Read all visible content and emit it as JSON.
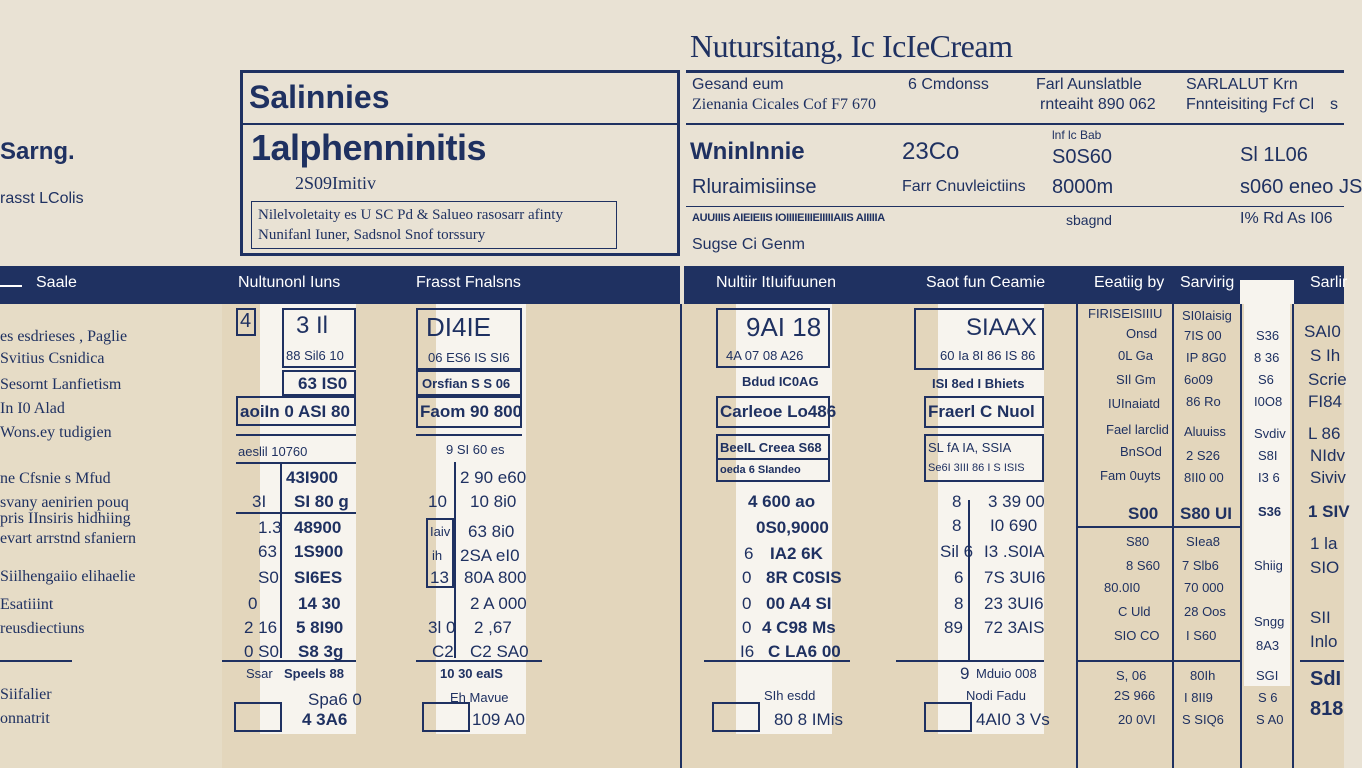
{
  "title": "Nutursitang, Ic IcIeCream",
  "left_header": {
    "title": "Sarng.",
    "subtitle": "rasst LColis"
  },
  "box_a": {
    "heading": "Salinnies",
    "subheading": "1alphenninitis",
    "subtext": "2S09Imitiv",
    "note_line1": "Nilelvoletaity es U SC Pd & Salueo rasosarr afinty",
    "note_line2": "Nunifanl Iuner, Sadsnol Snof torssury"
  },
  "right_top": {
    "r1c1a": "Gesand eum",
    "r1c1b": "Zienania Cicales Cof F7 670",
    "r1c2": "6 Cmdonss",
    "r1c3a": "Farl Aunslatble",
    "r1c3b": "rnteaiht 890 062",
    "r1c4a": "SARLALUT Krn",
    "r1c4b": "Fnnteisiting Fcf Cl",
    "r1c4c": "s",
    "r2a": "Wninlnnie",
    "r2b": "23Co",
    "r2c_top": "lnf lc Bab",
    "r2c": "S0S60",
    "r2d": "Sl 1L06",
    "r3a": "Rluraimisiinse",
    "r3b": "Farr Cnuvleictiins",
    "r3c": "8000m",
    "r3d": "s060 eneo JS",
    "r4a": "AUUIIIS AIEIEIIS IOIIIIEIIIEIIIIIAIIS AIIIIIA",
    "r4c": "sbagnd",
    "r4d": "I% Rd As I06",
    "r5": "Sugse Ci Genm"
  },
  "band": {
    "h1": "Saale",
    "h2": "Nultunonl Iuns",
    "h3": "Frasst Fnalsns",
    "h4": "Nultiir ItIuifuunen",
    "h5": "Saot fun Ceamie",
    "h6": "Eeatiig by",
    "h7": "Sarvirig",
    "h8": "Sarlir"
  },
  "side_labels": [
    "es esdrieses , Paglie",
    "Svitius Csnidica",
    "Sesornt Lanfietism",
    "In I0 Alad",
    "Wons.ey tudigien",
    "ne Cfsnie s Mfud",
    "svany aenirien pouq",
    "pris IInsiris hidhiing",
    "evart arrstnd sfaniern",
    "Siilhengaiio elihaelie",
    "Esatiiint",
    "reusdiectiuns",
    "Siifalier",
    "onnatrit"
  ],
  "col1": {
    "c0": "4",
    "r0": "3 Il",
    "r0b": "88 Sil6 10",
    "r1": "63 IS0",
    "r2": "aoiIn 0 ASI 80",
    "r3": "aeslil 10760",
    "r4": "43I900",
    "r5a": "3I",
    "r5b": "SI 80 g",
    "r6a": "1.3",
    "r6b": "48900",
    "r7a": "63",
    "r7b": "1S900",
    "r8a": "S0",
    "r8b": "SI6ES",
    "r9a": "0",
    "r9b": "14 30",
    "r10a": "2 16",
    "r10b": "5 8I90",
    "r11a": "0 S0",
    "r11b": "S8 3g",
    "r12a": "Ssar",
    "r12b": "Speels 88",
    "r13": "Spa6 0",
    "r14": "4 3A6"
  },
  "col2": {
    "r0": "DI4IE",
    "r0b": "06 ES6 IS SI6",
    "r1": "Orsfian S S 06",
    "r2": "Faom 90 800",
    "r3": "9 SI 60 es",
    "r4": "2 90 e60",
    "r5a": "10",
    "r5b": "10 8i0",
    "r6a": "Iaiv",
    "r6b": "63 8i0",
    "r7a": "ih",
    "r7b": "2SA eI0",
    "r8a": "13",
    "r8b": "80A 800",
    "r9b": "2 A 000",
    "r10a": "3l 0",
    "r10b": "2 ,67",
    "r11a": "C2",
    "r11b": "C2 SA0",
    "r12": "10 30 eaIS",
    "r13": "Eh Mavue",
    "r14": "109 A0"
  },
  "col3": {
    "r0": "9AI 18",
    "r0b": "4A 07 08 A26",
    "r1": "Bdud IC0AG",
    "r2": "Carleoe Lo486",
    "r3": "BeeIL Creea S68",
    "r4": "oeda 6 SIandeo",
    "r5": "4 600 ao",
    "r6": "0S0,9000",
    "r7a": "6",
    "r7b": "IA2 6K",
    "r8a": "0",
    "r8b": "8R C0SIS",
    "r9a": "0",
    "r9b": "00 A4 SI",
    "r10a": "0",
    "r10b": "4 C98 Ms",
    "r11a": "I6",
    "r11b": "C LA6 00",
    "r12": "SIh esdd",
    "r13": "80 8 IMis"
  },
  "col4": {
    "r0": "SIAAX",
    "r0b": "60 Ia 8I 86 IS 86",
    "r1": "ISI 8ed I Bhiets",
    "r2": "Fraerl C Nuol",
    "r3": "SL fA IA,   SSIA",
    "r4": "Se6I 3III  86 I S ISIS",
    "r5a": "8",
    "r5b": "3 39 00",
    "r6a": "8",
    "r6b": "I0 690",
    "r7a": "Sil 6",
    "r7b": "I3 .S0IA",
    "r8a": "6",
    "r8b": "7S 3UI6",
    "r9a": "8",
    "r9b": "23 3UI6",
    "r10a": "89",
    "r10b": "72 3AIS",
    "r11a": "9",
    "r11b": "Mduio 008",
    "r12": "Nodi Fadu",
    "r13": "4AI0 3 Vs"
  },
  "col5": {
    "a1": "FIRISEISIIIU",
    "a2": "Onsd",
    "a3": "0L Ga",
    "a4": "SIl Gm",
    "a5": "IUInaiatd",
    "a6": "Fael larclid",
    "a7": "BnSOd",
    "a8": "Fam 0uyts",
    "a9": "S00",
    "a10": "S80",
    "a11": "8 S60",
    "a12": "80.0I0",
    "a13": "C Uld",
    "a14": "SIO CO",
    "a15": "S, 06",
    "a16": "2S 966",
    "a17": "20 0VI"
  },
  "col6": {
    "a1": "SI0Iaisig",
    "a2": "7IS 00",
    "a3": "IP 8G0",
    "a4": "6o09",
    "a5": "86 Ro",
    "a6": "Aluuiss",
    "a7": "2 S26",
    "a8": "8II0 00",
    "a9": "S80 UI",
    "a10": "SIea8",
    "a11": "7 Slb6",
    "a12": "70 000",
    "a13": "28 Oos",
    "a14": "I S60",
    "a15": "80Ih",
    "a16": "I 8II9",
    "a17": "S SIQ6"
  },
  "col7": {
    "a1": "S36",
    "a2": "8 36",
    "a3": "S6",
    "a4": "I0O8",
    "a5": "Svdiv",
    "a6": "S8I",
    "a7": "I3 6",
    "a8": "S36",
    "a9": "Shiig",
    "a10": "Sngg",
    "a11": "8A3",
    "a12": "SGI",
    "a13": "S 6",
    "a14": "S A0"
  },
  "col8": {
    "a1": "SAI0",
    "a2": "S Ih",
    "a3": "Scrie",
    "a4": "FI84",
    "a5": "L 86",
    "a6": "NIdv",
    "a7": "Siviv",
    "a8": "1 SIV",
    "a9": "1 la",
    "a10": "SIO",
    "a11": "SII",
    "a12": "Inlo",
    "a13": "SdI",
    "a14": "818"
  }
}
